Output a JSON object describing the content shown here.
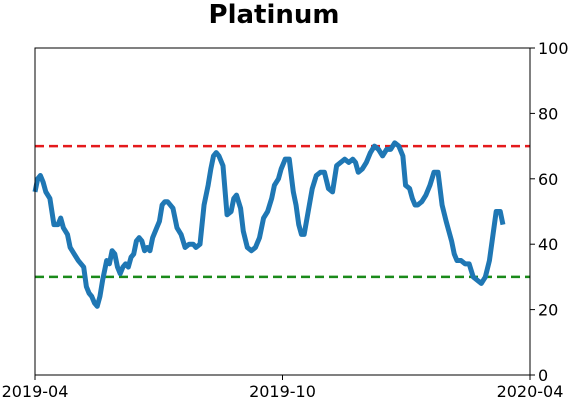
{
  "chart_data": {
    "type": "line",
    "title": "Platinum",
    "xlabel": "",
    "ylabel": "",
    "x_ticks": [
      "2019-04",
      "2019-10",
      "2020-04"
    ],
    "xlim": [
      "2019-04-01",
      "2020-04-01"
    ],
    "ylim": [
      0,
      100
    ],
    "y_ticks": [
      0,
      20,
      40,
      60,
      80,
      100
    ],
    "y_axis_side": "right",
    "grid": false,
    "reference_lines": [
      {
        "y": 70,
        "color": "#e41a1c",
        "style": "dashed"
      },
      {
        "y": 30,
        "color": "#1a8a1a",
        "style": "dashed"
      }
    ],
    "series": [
      {
        "color": "#1f77b4",
        "points": [
          [
            "2019-04-01",
            56
          ],
          [
            "2019-04-03",
            60
          ],
          [
            "2019-04-05",
            61
          ],
          [
            "2019-04-07",
            59
          ],
          [
            "2019-04-09",
            56
          ],
          [
            "2019-04-12",
            54
          ],
          [
            "2019-04-15",
            46
          ],
          [
            "2019-04-18",
            46
          ],
          [
            "2019-04-20",
            48
          ],
          [
            "2019-04-22",
            45
          ],
          [
            "2019-04-25",
            43
          ],
          [
            "2019-04-27",
            39
          ],
          [
            "2019-04-30",
            37
          ],
          [
            "2019-05-03",
            35
          ],
          [
            "2019-05-05",
            34
          ],
          [
            "2019-05-07",
            33
          ],
          [
            "2019-05-09",
            27
          ],
          [
            "2019-05-11",
            25
          ],
          [
            "2019-05-13",
            24
          ],
          [
            "2019-05-15",
            22
          ],
          [
            "2019-05-17",
            21
          ],
          [
            "2019-05-19",
            24
          ],
          [
            "2019-05-21",
            29
          ],
          [
            "2019-05-24",
            35
          ],
          [
            "2019-05-26",
            34
          ],
          [
            "2019-05-28",
            38
          ],
          [
            "2019-05-30",
            37
          ],
          [
            "2019-06-01",
            33
          ],
          [
            "2019-06-03",
            31
          ],
          [
            "2019-06-05",
            33
          ],
          [
            "2019-06-07",
            34
          ],
          [
            "2019-06-09",
            33
          ],
          [
            "2019-06-11",
            36
          ],
          [
            "2019-06-13",
            37
          ],
          [
            "2019-06-15",
            41
          ],
          [
            "2019-06-17",
            42
          ],
          [
            "2019-06-19",
            41
          ],
          [
            "2019-06-21",
            38
          ],
          [
            "2019-06-23",
            39
          ],
          [
            "2019-06-25",
            38
          ],
          [
            "2019-06-27",
            42
          ],
          [
            "2019-06-30",
            45
          ],
          [
            "2019-07-02",
            47
          ],
          [
            "2019-07-04",
            52
          ],
          [
            "2019-07-06",
            53
          ],
          [
            "2019-07-08",
            53
          ],
          [
            "2019-07-10",
            52
          ],
          [
            "2019-07-12",
            51
          ],
          [
            "2019-07-15",
            45
          ],
          [
            "2019-07-18",
            43
          ],
          [
            "2019-07-21",
            39
          ],
          [
            "2019-07-24",
            40
          ],
          [
            "2019-07-27",
            40
          ],
          [
            "2019-07-29",
            39
          ],
          [
            "2019-08-01",
            40
          ],
          [
            "2019-08-04",
            52
          ],
          [
            "2019-08-07",
            58
          ],
          [
            "2019-08-09",
            63
          ],
          [
            "2019-08-11",
            67
          ],
          [
            "2019-08-13",
            68
          ],
          [
            "2019-08-15",
            67
          ],
          [
            "2019-08-18",
            64
          ],
          [
            "2019-08-21",
            49
          ],
          [
            "2019-08-24",
            50
          ],
          [
            "2019-08-26",
            54
          ],
          [
            "2019-08-28",
            55
          ],
          [
            "2019-08-31",
            51
          ],
          [
            "2019-09-02",
            44
          ],
          [
            "2019-09-05",
            39
          ],
          [
            "2019-09-08",
            38
          ],
          [
            "2019-09-11",
            39
          ],
          [
            "2019-09-14",
            42
          ],
          [
            "2019-09-17",
            48
          ],
          [
            "2019-09-20",
            50
          ],
          [
            "2019-09-23",
            54
          ],
          [
            "2019-09-25",
            58
          ],
          [
            "2019-09-28",
            60
          ],
          [
            "2019-09-30",
            63
          ],
          [
            "2019-10-03",
            66
          ],
          [
            "2019-10-06",
            66
          ],
          [
            "2019-10-09",
            56
          ],
          [
            "2019-10-11",
            52
          ],
          [
            "2019-10-13",
            46
          ],
          [
            "2019-10-15",
            43
          ],
          [
            "2019-10-17",
            43
          ],
          [
            "2019-10-20",
            50
          ],
          [
            "2019-10-23",
            57
          ],
          [
            "2019-10-26",
            61
          ],
          [
            "2019-10-29",
            62
          ],
          [
            "2019-11-01",
            62
          ],
          [
            "2019-11-04",
            57
          ],
          [
            "2019-11-07",
            56
          ],
          [
            "2019-11-10",
            64
          ],
          [
            "2019-11-13",
            65
          ],
          [
            "2019-11-16",
            66
          ],
          [
            "2019-11-19",
            65
          ],
          [
            "2019-11-22",
            66
          ],
          [
            "2019-11-24",
            65
          ],
          [
            "2019-11-26",
            62
          ],
          [
            "2019-11-29",
            63
          ],
          [
            "2019-12-02",
            65
          ],
          [
            "2019-12-05",
            68
          ],
          [
            "2019-12-08",
            70
          ],
          [
            "2019-12-11",
            69
          ],
          [
            "2019-12-14",
            67
          ],
          [
            "2019-12-17",
            69
          ],
          [
            "2019-12-20",
            69
          ],
          [
            "2019-12-23",
            71
          ],
          [
            "2019-12-26",
            70
          ],
          [
            "2019-12-29",
            67
          ],
          [
            "2019-12-31",
            58
          ],
          [
            "2020-01-03",
            57
          ],
          [
            "2020-01-05",
            54
          ],
          [
            "2020-01-07",
            52
          ],
          [
            "2020-01-09",
            52
          ],
          [
            "2020-01-12",
            53
          ],
          [
            "2020-01-15",
            55
          ],
          [
            "2020-01-18",
            58
          ],
          [
            "2020-01-21",
            62
          ],
          [
            "2020-01-24",
            62
          ],
          [
            "2020-01-27",
            52
          ],
          [
            "2020-01-30",
            47
          ],
          [
            "2020-02-01",
            44
          ],
          [
            "2020-02-03",
            41
          ],
          [
            "2020-02-05",
            37
          ],
          [
            "2020-02-07",
            35
          ],
          [
            "2020-02-10",
            35
          ],
          [
            "2020-02-13",
            34
          ],
          [
            "2020-02-16",
            34
          ],
          [
            "2020-02-19",
            30
          ],
          [
            "2020-02-22",
            29
          ],
          [
            "2020-02-25",
            28
          ],
          [
            "2020-02-28",
            30
          ],
          [
            "2020-03-02",
            35
          ],
          [
            "2020-03-05",
            44
          ],
          [
            "2020-03-07",
            50
          ],
          [
            "2020-03-10",
            50
          ],
          [
            "2020-03-12",
            46
          ]
        ]
      }
    ]
  }
}
